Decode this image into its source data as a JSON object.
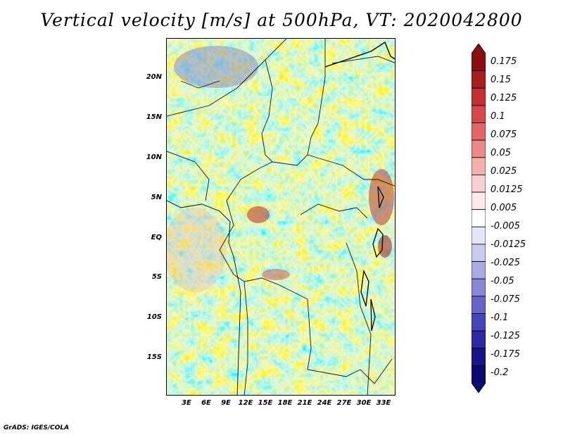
{
  "title": "Vertical velocity [m/s] at 500hPa, VT: 2020042800",
  "credit": "GrADS: IGES/COLA",
  "lat_labels": [
    "20N",
    "15N",
    "10N",
    "5N",
    "EQ",
    "5S",
    "10S",
    "15S"
  ],
  "lon_labels": [
    "3E",
    "6E",
    "9E",
    "12E",
    "15E",
    "18E",
    "21E",
    "24E",
    "27E",
    "30E",
    "33E"
  ],
  "colorbar": {
    "labels": [
      "0.175",
      "0.15",
      "0.125",
      "0.1",
      "0.075",
      "0.05",
      "0.025",
      "0.0125",
      "0.005",
      "-0.005",
      "-0.0125",
      "-0.025",
      "-0.05",
      "-0.075",
      "-0.1",
      "-0.125",
      "-0.175",
      "-0.2"
    ],
    "colors": [
      "#8b0f0f",
      "#a91d1d",
      "#c43030",
      "#d84747",
      "#e46666",
      "#ec8888",
      "#f4aeae",
      "#f9cfcf",
      "#fde9e9",
      "#ffffff",
      "#e6e6f8",
      "#cbcbf0",
      "#a9a9e6",
      "#8787da",
      "#6565cc",
      "#4646bb",
      "#2a2aa6",
      "#16168c",
      "#0a0a72"
    ]
  },
  "map": {
    "lat_range": [
      -20,
      25
    ],
    "lon_range": [
      0,
      35
    ]
  }
}
